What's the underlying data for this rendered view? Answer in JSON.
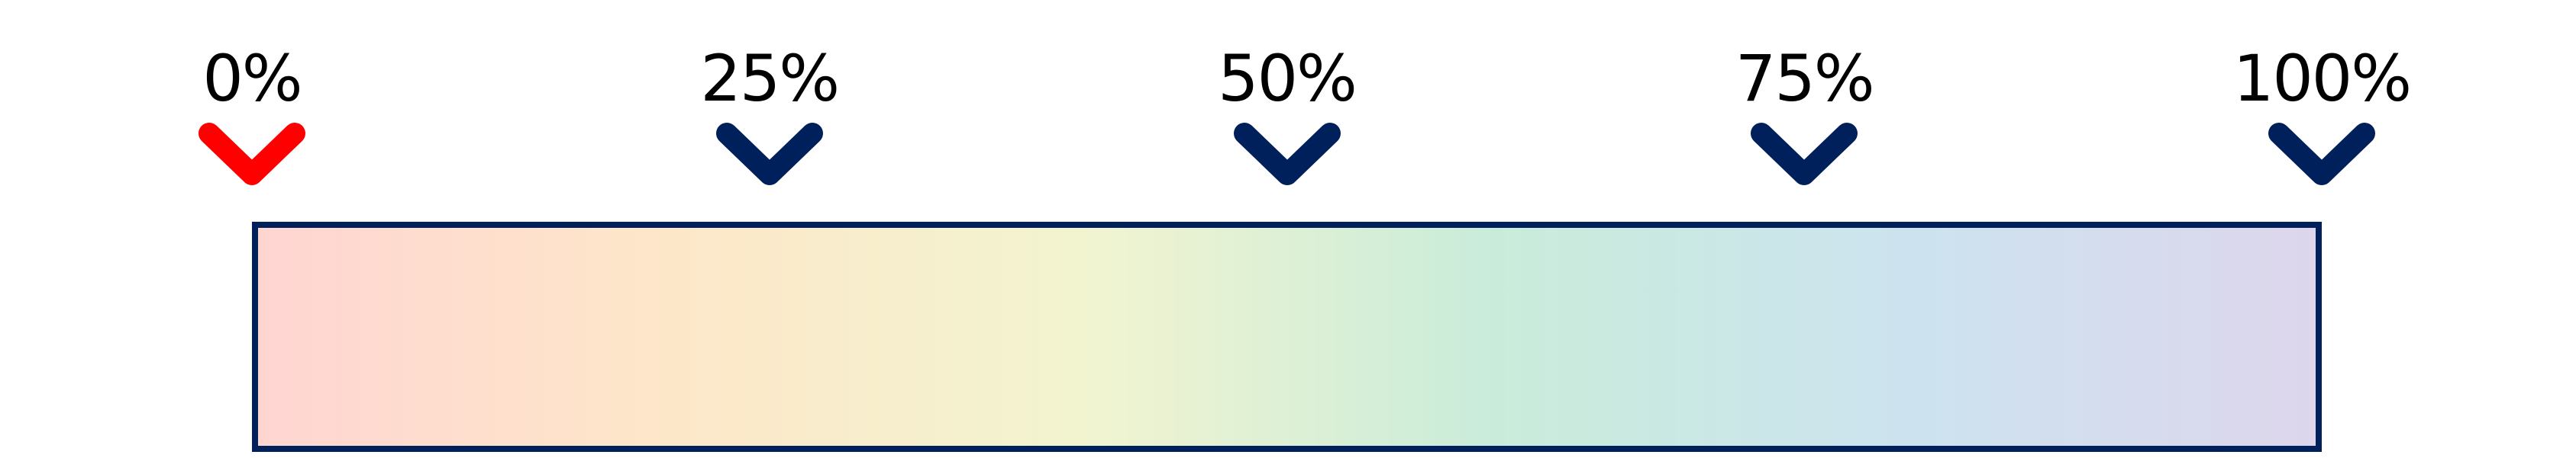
{
  "markers": [
    {
      "label": "0%",
      "value": 0,
      "color": "#ff0000",
      "icon": "chevron-down-icon",
      "active": true
    },
    {
      "label": "25%",
      "value": 25,
      "color": "#00205b",
      "icon": "chevron-down-icon",
      "active": false
    },
    {
      "label": "50%",
      "value": 50,
      "color": "#00205b",
      "icon": "chevron-down-icon",
      "active": false
    },
    {
      "label": "75%",
      "value": 75,
      "color": "#00205b",
      "icon": "chevron-down-icon",
      "active": false
    },
    {
      "label": "100%",
      "value": 100,
      "color": "#00205b",
      "icon": "chevron-down-icon",
      "active": false
    }
  ],
  "colors": {
    "border": "#00205b",
    "active": "#ff0000",
    "inactive": "#00205b",
    "gradient_stops": [
      "#ffd5d2",
      "#fde7c9",
      "#f2f4d0",
      "#c9ecda",
      "#cce3ef",
      "#ddd6ec"
    ]
  }
}
